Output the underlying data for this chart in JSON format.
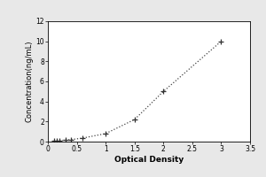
{
  "xlabel": "Optical Density",
  "ylabel": "Concentration(ng/mL)",
  "x_data": [
    0.1,
    0.15,
    0.2,
    0.3,
    0.4,
    0.6,
    1.0,
    1.5,
    2.0,
    3.0
  ],
  "y_data": [
    0.05,
    0.08,
    0.1,
    0.15,
    0.2,
    0.35,
    0.8,
    2.2,
    5.0,
    10.0
  ],
  "xlim": [
    0,
    3.5
  ],
  "ylim": [
    0,
    12
  ],
  "xticks": [
    0,
    0.5,
    1,
    1.5,
    2,
    2.5,
    3,
    3.5
  ],
  "xtick_labels": [
    "0",
    "0.5",
    "1",
    "1.5",
    "2",
    "2.5",
    "3",
    "3.5"
  ],
  "yticks": [
    0,
    2,
    4,
    6,
    8,
    10,
    12
  ],
  "ytick_labels": [
    "0",
    "2",
    "4",
    "6",
    "8",
    "10",
    "12"
  ],
  "line_color": "#444444",
  "marker": "+",
  "marker_size": 5,
  "marker_color": "#333333",
  "line_style": "dotted",
  "background_color": "#ffffff",
  "outer_bg": "#e8e8e8",
  "xlabel_fontsize": 6.5,
  "ylabel_fontsize": 6,
  "tick_fontsize": 5.5,
  "line_width": 0.9
}
